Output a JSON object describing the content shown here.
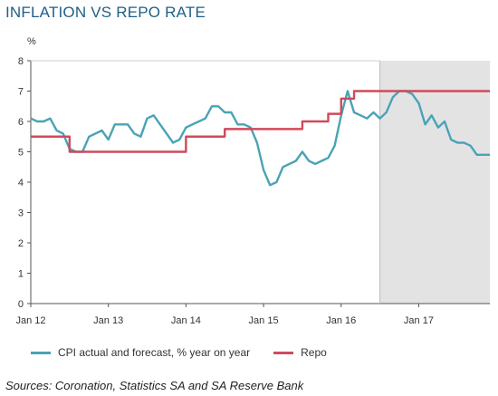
{
  "chart_data": {
    "type": "line",
    "title": "INFLATION VS REPO RATE",
    "ylabel": "%",
    "ylim": [
      0,
      8
    ],
    "yticks": [
      0,
      1,
      2,
      3,
      4,
      5,
      6,
      7,
      8
    ],
    "xlim": [
      "2012-01",
      "2017-12"
    ],
    "xticks": [
      {
        "label": "Jan 12",
        "month": 0
      },
      {
        "label": "Jan 13",
        "month": 12
      },
      {
        "label": "Jan 14",
        "month": 24
      },
      {
        "label": "Jan 15",
        "month": 36
      },
      {
        "label": "Jan 16",
        "month": 48
      },
      {
        "label": "Jan 17",
        "month": 60
      }
    ],
    "forecast_shading_start": "2016-07",
    "grid": false,
    "legend_position": "bottom",
    "series": [
      {
        "name": "CPI actual and forecast, % year on year",
        "color": "#4aa3b5",
        "values": [
          6.1,
          6.0,
          6.0,
          6.1,
          5.7,
          5.6,
          5.1,
          5.0,
          5.0,
          5.5,
          5.6,
          5.7,
          5.4,
          5.9,
          5.9,
          5.9,
          5.6,
          5.5,
          6.1,
          6.2,
          5.9,
          5.6,
          5.3,
          5.4,
          5.8,
          5.9,
          6.0,
          6.1,
          6.5,
          6.5,
          6.3,
          6.3,
          5.9,
          5.9,
          5.8,
          5.3,
          4.4,
          3.9,
          4.0,
          4.5,
          4.6,
          4.7,
          5.0,
          4.7,
          4.6,
          4.7,
          4.8,
          5.2,
          6.2,
          7.0,
          6.3,
          6.2,
          6.1,
          6.3,
          6.1,
          6.3,
          6.8,
          7.0,
          7.0,
          6.9,
          6.6,
          5.9,
          6.2,
          5.8,
          6.0,
          5.4,
          5.3,
          5.3,
          5.2,
          4.9,
          4.9,
          4.9
        ]
      },
      {
        "name": "Repo",
        "color": "#cf4a5c",
        "values": [
          5.5,
          5.5,
          5.5,
          5.5,
          5.5,
          5.5,
          5.0,
          5.0,
          5.0,
          5.0,
          5.0,
          5.0,
          5.0,
          5.0,
          5.0,
          5.0,
          5.0,
          5.0,
          5.0,
          5.0,
          5.0,
          5.0,
          5.0,
          5.0,
          5.5,
          5.5,
          5.5,
          5.5,
          5.5,
          5.5,
          5.75,
          5.75,
          5.75,
          5.75,
          5.75,
          5.75,
          5.75,
          5.75,
          5.75,
          5.75,
          5.75,
          5.75,
          6.0,
          6.0,
          6.0,
          6.0,
          6.25,
          6.25,
          6.75,
          6.75,
          7.0,
          7.0,
          7.0,
          7.0,
          7.0,
          7.0,
          7.0,
          7.0,
          7.0,
          7.0,
          7.0,
          7.0,
          7.0,
          7.0,
          7.0,
          7.0,
          7.0,
          7.0,
          7.0,
          7.0,
          7.0,
          7.0
        ]
      }
    ]
  },
  "source_text": "Sources: Coronation, Statistics SA and SA Reserve Bank"
}
